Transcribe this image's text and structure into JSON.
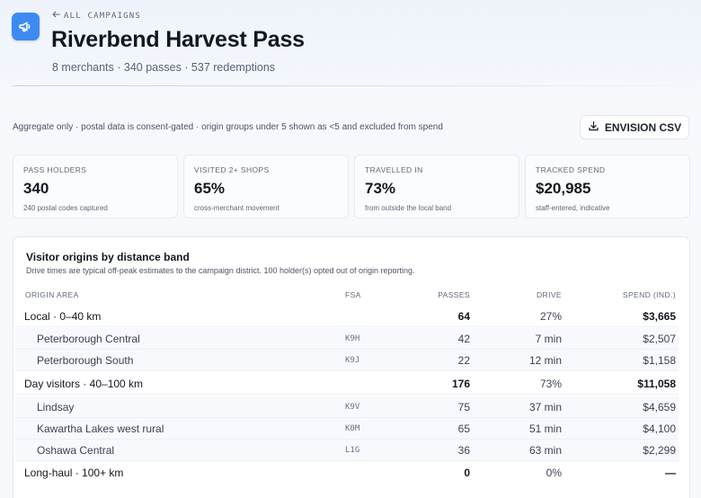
{
  "header": {
    "back_label": "ALL CAMPAIGNS",
    "title": "Riverbend Harvest Pass",
    "subtitle": "8 merchants · 340 passes · 537 redemptions"
  },
  "toolbar": {
    "privacy_note": "Aggregate only · postal data is consent-gated · origin groups under 5 shown as <5 and excluded from spend",
    "csv_label": "ENVISION CSV"
  },
  "stats": [
    {
      "label": "PASS HOLDERS",
      "value": "340",
      "caption": "240 postal codes captured"
    },
    {
      "label": "VISITED 2+ SHOPS",
      "value": "65%",
      "caption": "cross-merchant movement"
    },
    {
      "label": "TRAVELLED IN",
      "value": "73%",
      "caption": "from outside the local band"
    },
    {
      "label": "TRACKED SPEND",
      "value": "$20,985",
      "caption": "staff-entered, indicative"
    }
  ],
  "origins": {
    "title": "Visitor origins by distance band",
    "description": "Drive times are typical off-peak estimates to the campaign district. 100 holder(s) opted out of origin reporting.",
    "columns": {
      "area": "ORIGIN AREA",
      "fsa": "FSA",
      "passes": "PASSES",
      "drive": "DRIVE",
      "spend": "SPEND (IND.)"
    },
    "rows": [
      {
        "kind": "group",
        "name": "Local · 0–40 km",
        "fsa": "",
        "passes": "64",
        "drive": "27%",
        "spend": "$3,665"
      },
      {
        "kind": "child",
        "name": "Peterborough Central",
        "fsa": "K9H",
        "passes": "42",
        "drive": "7 min",
        "spend": "$2,507"
      },
      {
        "kind": "child",
        "name": "Peterborough South",
        "fsa": "K9J",
        "passes": "22",
        "drive": "12 min",
        "spend": "$1,158"
      },
      {
        "kind": "group",
        "name": "Day visitors · 40–100 km",
        "fsa": "",
        "passes": "176",
        "drive": "73%",
        "spend": "$11,058"
      },
      {
        "kind": "child",
        "name": "Lindsay",
        "fsa": "K9V",
        "passes": "75",
        "drive": "37 min",
        "spend": "$4,659"
      },
      {
        "kind": "child",
        "name": "Kawartha Lakes west rural",
        "fsa": "K0M",
        "passes": "65",
        "drive": "51 min",
        "spend": "$4,100"
      },
      {
        "kind": "child",
        "name": "Oshawa Central",
        "fsa": "L1G",
        "passes": "36",
        "drive": "63 min",
        "spend": "$2,299"
      },
      {
        "kind": "group",
        "name": "Long-haul · 100+ km",
        "fsa": "",
        "passes": "0",
        "drive": "0%",
        "spend": "—"
      }
    ]
  },
  "icons": {
    "app": "megaphone-icon",
    "back": "arrow-left-icon",
    "csv": "download-icon"
  },
  "colors": {
    "accent": "#3d8bf0",
    "background": "#f6f8fc",
    "text": "#14171f"
  }
}
